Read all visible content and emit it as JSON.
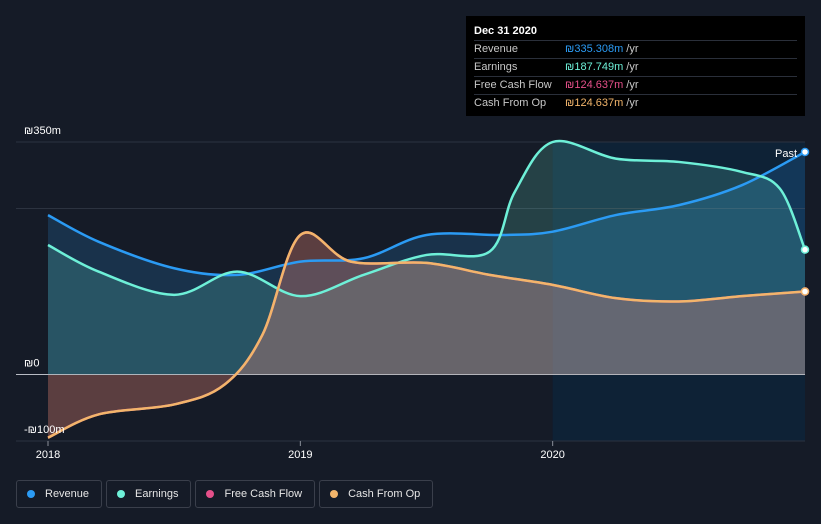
{
  "tooltip": {
    "date": "Dec 31 2020",
    "rows": [
      {
        "label": "Revenue",
        "value": "₪335.308m",
        "unit": "/yr",
        "color": "#2b9bf4"
      },
      {
        "label": "Earnings",
        "value": "₪187.749m",
        "unit": "/yr",
        "color": "#6ef0d8"
      },
      {
        "label": "Free Cash Flow",
        "value": "₪124.637m",
        "unit": "/yr",
        "color": "#e5508a"
      },
      {
        "label": "Cash From Op",
        "value": "₪124.637m",
        "unit": "/yr",
        "color": "#f2b56b"
      }
    ]
  },
  "past_label": "Past",
  "legend": [
    {
      "label": "Revenue",
      "color": "#2b9bf4"
    },
    {
      "label": "Earnings",
      "color": "#6ef0d8"
    },
    {
      "label": "Free Cash Flow",
      "color": "#e5508a"
    },
    {
      "label": "Cash From Op",
      "color": "#f2b56b"
    }
  ],
  "chart_data": {
    "type": "area",
    "y_tick_labels": [
      "₪350m",
      "₪0",
      "-₪100m"
    ],
    "x_tick_labels": [
      "2018",
      "2019",
      "2020"
    ],
    "ylim": [
      -100,
      350
    ],
    "x_range": [
      2018.0,
      2021.0
    ],
    "grid": true,
    "series": [
      {
        "name": "Revenue",
        "color": "#2b9bf4",
        "x": [
          2018.0,
          2018.2,
          2018.5,
          2018.75,
          2019.0,
          2019.25,
          2019.5,
          2019.8,
          2020.0,
          2020.25,
          2020.5,
          2020.75,
          2021.0
        ],
        "y": [
          240,
          200,
          160,
          150,
          170,
          175,
          210,
          210,
          215,
          240,
          255,
          285,
          335
        ]
      },
      {
        "name": "Earnings",
        "color": "#6ef0d8",
        "x": [
          2018.0,
          2018.2,
          2018.5,
          2018.75,
          2019.0,
          2019.25,
          2019.5,
          2019.75,
          2019.85,
          2020.0,
          2020.25,
          2020.5,
          2020.75,
          2020.9,
          2021.0
        ],
        "y": [
          195,
          155,
          120,
          155,
          118,
          150,
          180,
          185,
          275,
          350,
          325,
          320,
          305,
          280,
          188
        ]
      },
      {
        "name": "Free Cash Flow",
        "color": "#e5508a",
        "x": [
          2018.0,
          2018.2,
          2018.5,
          2018.7,
          2018.85,
          2019.0,
          2019.2,
          2019.5,
          2019.75,
          2020.0,
          2020.25,
          2020.5,
          2020.75,
          2021.0
        ],
        "y": [
          -95,
          -60,
          -45,
          -15,
          60,
          210,
          170,
          168,
          150,
          135,
          115,
          110,
          118,
          125
        ]
      },
      {
        "name": "Cash From Op",
        "color": "#f2b56b",
        "x": [
          2018.0,
          2018.2,
          2018.5,
          2018.7,
          2018.85,
          2019.0,
          2019.2,
          2019.5,
          2019.75,
          2020.0,
          2020.25,
          2020.5,
          2020.75,
          2021.0
        ],
        "y": [
          -95,
          -60,
          -45,
          -15,
          60,
          210,
          170,
          168,
          150,
          135,
          115,
          110,
          118,
          125
        ]
      }
    ]
  }
}
